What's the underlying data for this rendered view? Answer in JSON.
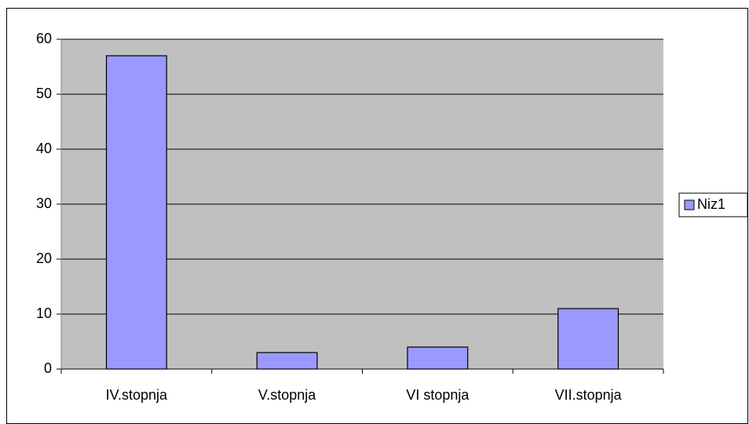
{
  "chart_data": {
    "type": "bar",
    "categories": [
      "IV.stopnja",
      "V.stopnja",
      "VI stopnja",
      "VII.stopnja"
    ],
    "series": [
      {
        "name": "Niz1",
        "color": "#9999ff",
        "values": [
          57,
          3,
          4,
          11
        ]
      }
    ],
    "ylim": [
      0,
      60
    ],
    "yticks": [
      0,
      10,
      20,
      30,
      40,
      50,
      60
    ],
    "grid": true,
    "legend": "right"
  }
}
